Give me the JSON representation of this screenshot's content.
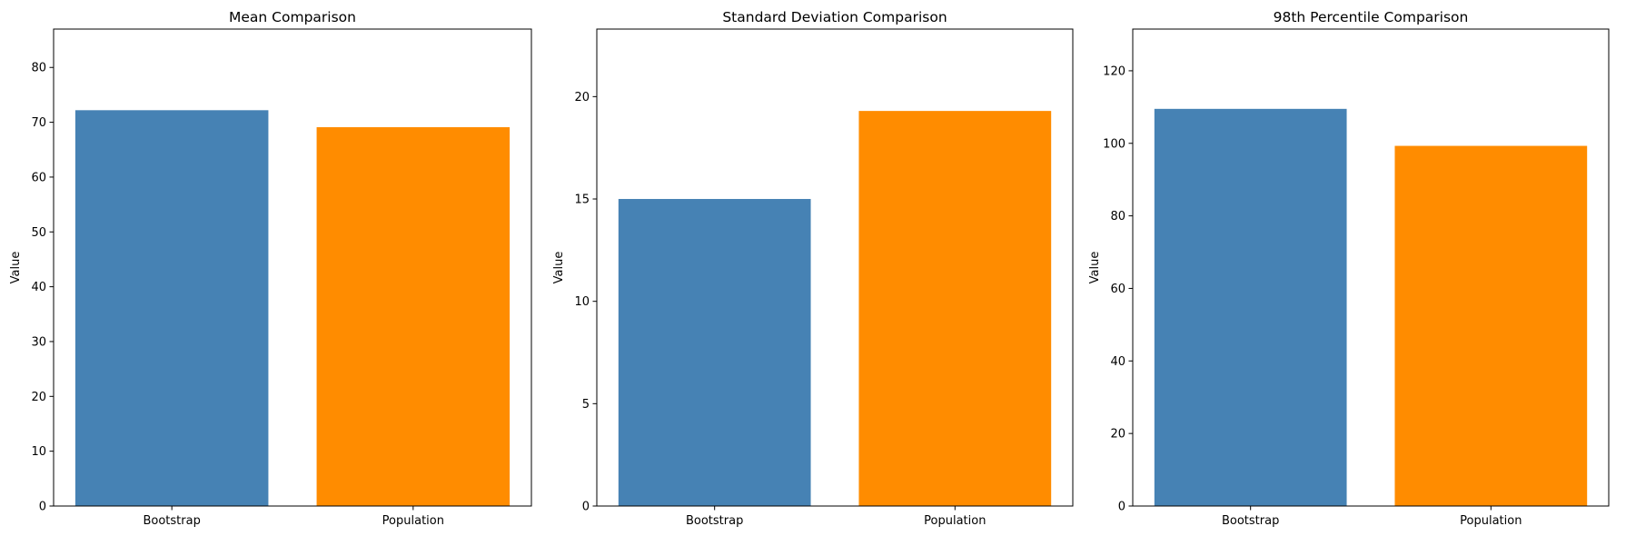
{
  "chart_data": [
    {
      "type": "bar",
      "title": "Mean Comparison",
      "xlabel": "",
      "ylabel": "Value",
      "categories": [
        "Bootstrap",
        "Population"
      ],
      "values": [
        72.2,
        69.1
      ],
      "colors": [
        "#4682b4",
        "#ff8c00"
      ],
      "ylim": [
        0,
        87
      ],
      "yticks": [
        0,
        10,
        20,
        30,
        40,
        50,
        60,
        70,
        80
      ],
      "grid": false,
      "legend": "none"
    },
    {
      "type": "bar",
      "title": "Standard Deviation Comparison",
      "xlabel": "",
      "ylabel": "Value",
      "categories": [
        "Bootstrap",
        "Population"
      ],
      "values": [
        15.0,
        19.3
      ],
      "colors": [
        "#4682b4",
        "#ff8c00"
      ],
      "ylim": [
        0,
        23.3
      ],
      "yticks": [
        0,
        5,
        10,
        15,
        20
      ],
      "grid": false,
      "legend": "none"
    },
    {
      "type": "bar",
      "title": "98th Percentile Comparison",
      "xlabel": "",
      "ylabel": "Value",
      "categories": [
        "Bootstrap",
        "Population"
      ],
      "values": [
        109.5,
        99.3
      ],
      "colors": [
        "#4682b4",
        "#ff8c00"
      ],
      "ylim": [
        0,
        131.5
      ],
      "yticks": [
        0,
        20,
        40,
        60,
        80,
        100,
        120
      ],
      "grid": false,
      "legend": "none"
    }
  ]
}
